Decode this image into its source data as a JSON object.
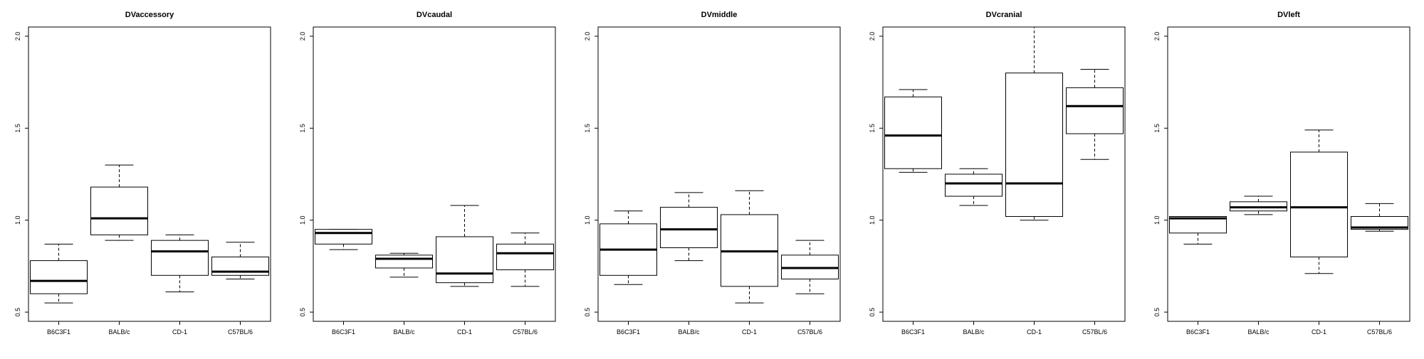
{
  "chart_data": [
    {
      "type": "boxplot",
      "title": "DVaccessory",
      "categories": [
        "B6C3F1",
        "BALB/c",
        "CD-1",
        "C57BL/6"
      ],
      "ylim": [
        0.45,
        2.05
      ],
      "yticks": [
        "0.5",
        "1.0",
        "1.5",
        "2.0"
      ],
      "grid": false,
      "boxes": [
        {
          "category": "B6C3F1",
          "min": 0.55,
          "q1": 0.6,
          "median": 0.67,
          "q3": 0.78,
          "max": 0.87
        },
        {
          "category": "BALB/c",
          "min": 0.89,
          "q1": 0.92,
          "median": 1.01,
          "q3": 1.18,
          "max": 1.3
        },
        {
          "category": "CD-1",
          "min": 0.61,
          "q1": 0.7,
          "median": 0.83,
          "q3": 0.89,
          "max": 0.92
        },
        {
          "category": "C57BL/6",
          "min": 0.68,
          "q1": 0.7,
          "median": 0.72,
          "q3": 0.8,
          "max": 0.88
        }
      ]
    },
    {
      "type": "boxplot",
      "title": "DVcaudal",
      "categories": [
        "B6C3F1",
        "BALB/c",
        "CD-1",
        "C57BL/6"
      ],
      "ylim": [
        0.45,
        2.05
      ],
      "yticks": [
        "0.5",
        "1.0",
        "1.5",
        "2.0"
      ],
      "grid": false,
      "boxes": [
        {
          "category": "B6C3F1",
          "min": 0.84,
          "q1": 0.87,
          "median": 0.93,
          "q3": 0.95,
          "max": 0.95
        },
        {
          "category": "BALB/c",
          "min": 0.69,
          "q1": 0.74,
          "median": 0.79,
          "q3": 0.81,
          "max": 0.82
        },
        {
          "category": "CD-1",
          "min": 0.64,
          "q1": 0.66,
          "median": 0.71,
          "q3": 0.91,
          "max": 1.08
        },
        {
          "category": "C57BL/6",
          "min": 0.64,
          "q1": 0.73,
          "median": 0.82,
          "q3": 0.87,
          "max": 0.93
        }
      ]
    },
    {
      "type": "boxplot",
      "title": "DVmiddle",
      "categories": [
        "B6C3F1",
        "BALB/c",
        "CD-1",
        "C57BL/6"
      ],
      "ylim": [
        0.45,
        2.05
      ],
      "yticks": [
        "0.5",
        "1.0",
        "1.5",
        "2.0"
      ],
      "grid": false,
      "boxes": [
        {
          "category": "B6C3F1",
          "min": 0.65,
          "q1": 0.7,
          "median": 0.84,
          "q3": 0.98,
          "max": 1.05
        },
        {
          "category": "BALB/c",
          "min": 0.78,
          "q1": 0.85,
          "median": 0.95,
          "q3": 1.07,
          "max": 1.15
        },
        {
          "category": "CD-1",
          "min": 0.55,
          "q1": 0.64,
          "median": 0.83,
          "q3": 1.03,
          "max": 1.16
        },
        {
          "category": "C57BL/6",
          "min": 0.6,
          "q1": 0.68,
          "median": 0.74,
          "q3": 0.81,
          "max": 0.89
        }
      ]
    },
    {
      "type": "boxplot",
      "title": "DVcranial",
      "categories": [
        "B6C3F1",
        "BALB/c",
        "CD-1",
        "C57BL/6"
      ],
      "ylim": [
        0.45,
        2.05
      ],
      "yticks": [
        "0.5",
        "1.0",
        "1.5",
        "2.0"
      ],
      "grid": false,
      "boxes": [
        {
          "category": "B6C3F1",
          "min": 1.26,
          "q1": 1.28,
          "median": 1.46,
          "q3": 1.67,
          "max": 1.71
        },
        {
          "category": "BALB/c",
          "min": 1.08,
          "q1": 1.13,
          "median": 1.2,
          "q3": 1.25,
          "max": 1.28
        },
        {
          "category": "CD-1",
          "min": 1.0,
          "q1": 1.02,
          "median": 1.2,
          "q3": 1.8,
          "max": 2.07
        },
        {
          "category": "C57BL/6",
          "min": 1.33,
          "q1": 1.47,
          "median": 1.62,
          "q3": 1.72,
          "max": 1.82
        }
      ]
    },
    {
      "type": "boxplot",
      "title": "DVleft",
      "categories": [
        "B6C3F1",
        "BALB/c",
        "CD-1",
        "C57BL/6"
      ],
      "ylim": [
        0.45,
        2.05
      ],
      "yticks": [
        "0.5",
        "1.0",
        "1.5",
        "2.0"
      ],
      "grid": false,
      "boxes": [
        {
          "category": "B6C3F1",
          "min": 0.87,
          "q1": 0.93,
          "median": 1.01,
          "q3": 1.02,
          "max": 1.02
        },
        {
          "category": "BALB/c",
          "min": 1.03,
          "q1": 1.05,
          "median": 1.07,
          "q3": 1.1,
          "max": 1.13
        },
        {
          "category": "CD-1",
          "min": 0.71,
          "q1": 0.8,
          "median": 1.07,
          "q3": 1.37,
          "max": 1.49
        },
        {
          "category": "C57BL/6",
          "min": 0.94,
          "q1": 0.95,
          "median": 0.96,
          "q3": 1.02,
          "max": 1.09
        }
      ]
    }
  ]
}
